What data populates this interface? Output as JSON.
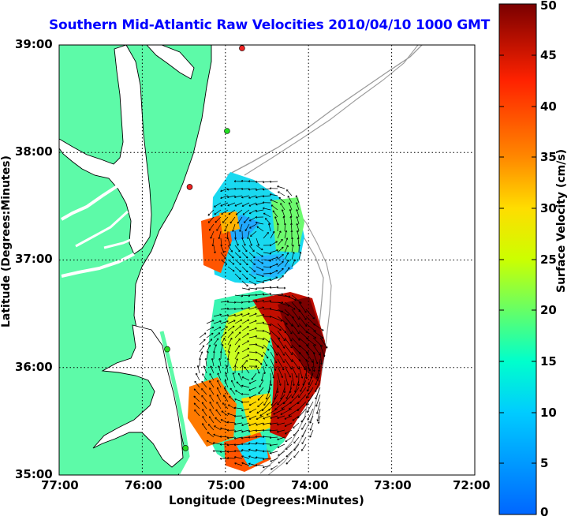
{
  "title": "Southern Mid-Atlantic Raw Velocities 2010/04/10 1000 GMT",
  "x_axis": {
    "label": "Longitude (Degrees:Minutes)",
    "ticks": [
      "77:00",
      "76:00",
      "75:00",
      "74:00",
      "73:00",
      "72:00"
    ]
  },
  "y_axis": {
    "label": "Latitude (Degrees:Minutes)",
    "ticks": [
      "39:00",
      "38:00",
      "37:00",
      "36:00",
      "35:00"
    ]
  },
  "colorbar": {
    "label": "Surface Velocity (cm/s)",
    "ticks": [
      "50",
      "45",
      "40",
      "35",
      "30",
      "25",
      "20",
      "15",
      "10",
      "5",
      "0"
    ],
    "min": 0,
    "max": 50,
    "colormap": "jet"
  },
  "colors": {
    "title": "#0000ff",
    "land": "#5dfaa8",
    "water": "#ffffff",
    "bathymetry": "#9a9a9a",
    "coastline": "#000000",
    "station_active": "#22dd22",
    "station_inactive": "#ee2222"
  },
  "map": {
    "lon_range": [
      -77,
      -72
    ],
    "lat_range": [
      35,
      39
    ],
    "grid": true,
    "projection": "lat-lon"
  },
  "stations": [
    {
      "lon": -74.8,
      "lat": 38.97,
      "status": "inactive"
    },
    {
      "lon": -74.98,
      "lat": 38.2,
      "status": "active"
    },
    {
      "lon": -75.43,
      "lat": 37.68,
      "status": "inactive"
    },
    {
      "lon": -75.7,
      "lat": 36.17,
      "status": "active"
    },
    {
      "lon": -75.48,
      "lat": 35.25,
      "status": "active"
    }
  ]
}
